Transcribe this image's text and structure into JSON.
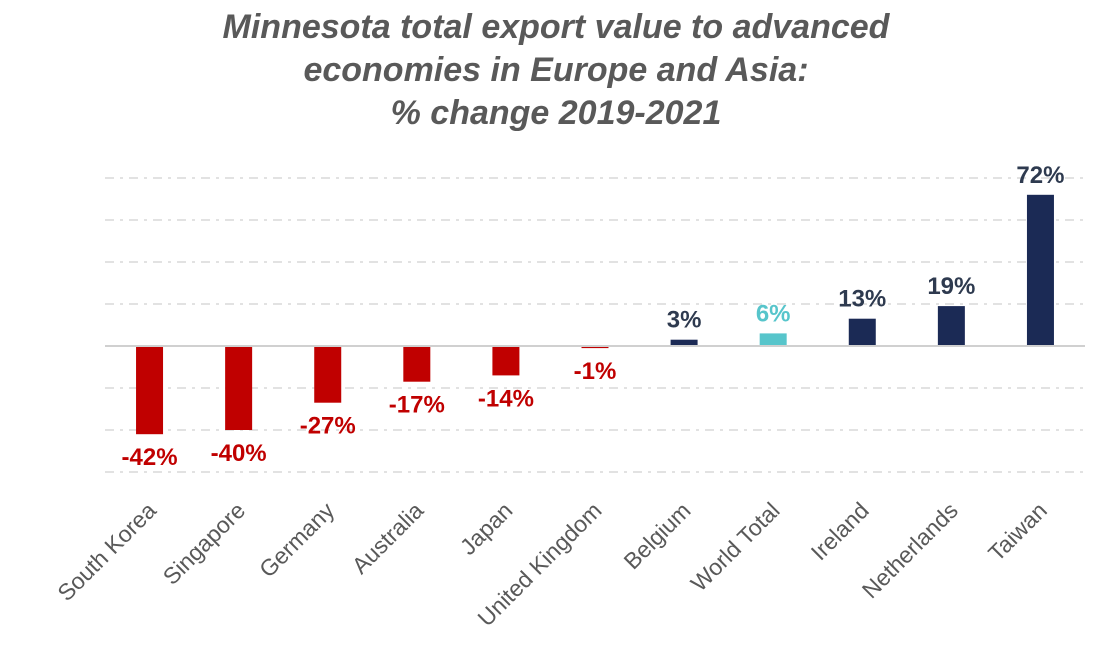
{
  "chart_data": {
    "type": "bar",
    "title_lines": [
      "Minnesota total export value to advanced",
      "economies in Europe and Asia:",
      "% change 2019-2021"
    ],
    "categories": [
      "South Korea",
      "Singapore",
      "Germany",
      "Australia",
      "Japan",
      "United Kingdom",
      "Belgium",
      "World Total",
      "Ireland",
      "Netherlands",
      "Taiwan"
    ],
    "values": [
      -42,
      -40,
      -27,
      -17,
      -14,
      -1,
      3,
      6,
      13,
      19,
      72
    ],
    "data_labels": [
      "-42%",
      "-40%",
      "-27%",
      "-17%",
      "-14%",
      "-1%",
      "3%",
      "6%",
      "13%",
      "19%",
      "72%"
    ],
    "ylim": [
      -60,
      80
    ],
    "grid_step": 20,
    "grid": true,
    "y_axis_labels_shown": false,
    "colors": {
      "negative": "#C00000",
      "positive": "#1B2A55",
      "highlight": "#57C5CB",
      "positive_label": "#2E3A4F",
      "grid": "#D0D0D0",
      "text": "#595959"
    },
    "highlight_category": "World Total"
  }
}
